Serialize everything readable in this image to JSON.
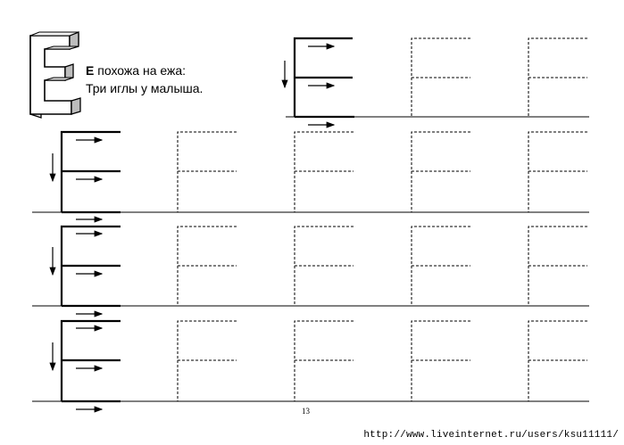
{
  "letter": "Е",
  "rhyme": {
    "letter": "Е",
    "line1_rest": " похожа на ежа:",
    "line2": "Три иглы у малыша."
  },
  "page_number": "13",
  "watermark": "http://www.liveinternet.ru/users/ksu11111/",
  "practice": {
    "rows": 4,
    "tracing_cells_per_row": 4,
    "first_row_tracing_cells": 2
  }
}
